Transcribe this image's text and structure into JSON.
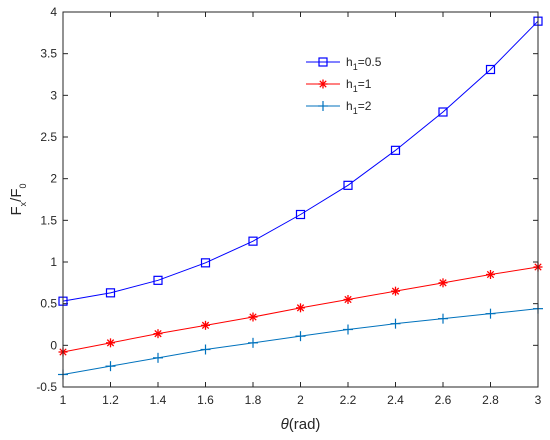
{
  "chart_data": {
    "type": "line",
    "xlabel": {
      "italic": "θ",
      "rest": "(rad)"
    },
    "ylabel": {
      "main": "F",
      "sub1": "x",
      "mid": "/F",
      "sub2": "0"
    },
    "xlim": [
      1,
      3
    ],
    "ylim": [
      -0.5,
      4
    ],
    "x_ticks": [
      "1",
      "1.2",
      "1.4",
      "1.6",
      "1.8",
      "2",
      "2.2",
      "2.4",
      "2.6",
      "2.8",
      "3"
    ],
    "y_ticks": [
      "-0.5",
      "0",
      "0.5",
      "1",
      "1.5",
      "2",
      "2.5",
      "3",
      "3.5",
      "4"
    ],
    "grid": false,
    "legend_position": "top-right",
    "x": [
      1,
      1.2,
      1.4,
      1.6,
      1.8,
      2,
      2.2,
      2.4,
      2.6,
      2.8,
      3
    ],
    "series": [
      {
        "name": "h1=0.5",
        "label_main": "h",
        "label_sub": "1",
        "label_rest": "=0.5",
        "marker": "square",
        "color": "#0000FF",
        "values": [
          0.53,
          0.63,
          0.78,
          0.99,
          1.25,
          1.57,
          1.92,
          2.34,
          2.8,
          3.31,
          3.89
        ]
      },
      {
        "name": "h1=1",
        "label_main": "h",
        "label_sub": "1",
        "label_rest": "=1",
        "marker": "asterisk",
        "color": "#FF0000",
        "values": [
          -0.08,
          0.03,
          0.14,
          0.24,
          0.34,
          0.45,
          0.55,
          0.65,
          0.75,
          0.85,
          0.94
        ]
      },
      {
        "name": "h1=2",
        "label_main": "h",
        "label_sub": "1",
        "label_rest": "=2",
        "marker": "plus",
        "color": "#0072BD",
        "values": [
          -0.35,
          -0.25,
          -0.15,
          -0.05,
          0.03,
          0.11,
          0.19,
          0.26,
          0.32,
          0.38,
          0.44
        ]
      }
    ]
  }
}
